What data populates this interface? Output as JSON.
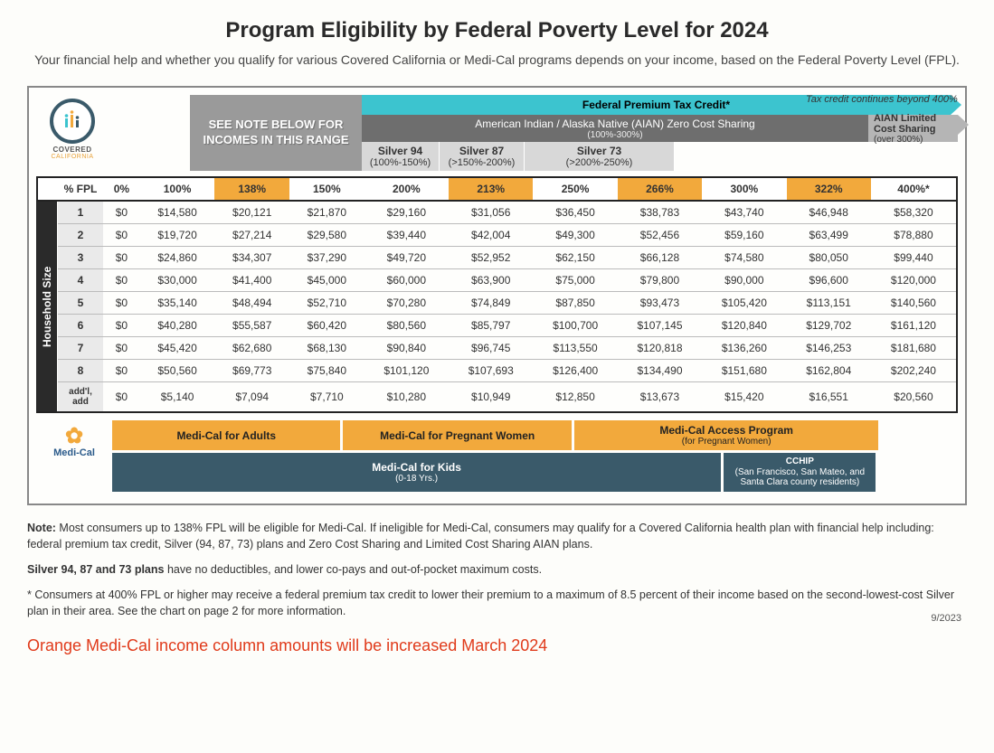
{
  "title": "Program Eligibility by Federal Poverty Level for 2024",
  "subtitle": "Your financial help and whether you qualify for various Covered California or Medi-Cal programs depends on your income, based on the Federal Poverty Level (FPL).",
  "logo": {
    "line1": "COVERED",
    "line2": "CALIFORNIA"
  },
  "bands": {
    "note_box": "SEE NOTE BELOW FOR INCOMES IN THIS RANGE",
    "federal_tax": "Federal Premium Tax Credit*",
    "tax_tail": "Tax credit continues beyond 400%",
    "aian": "American Indian / Alaska Native (AIAN) Zero Cost Sharing",
    "aian_sub": "(100%-300%)",
    "aian_tail": "AIAN Limited Cost Sharing",
    "aian_tail_sub": "(over 300%)",
    "silver94": "Silver 94",
    "silver94_sub": "(100%-150%)",
    "silver87": "Silver 87",
    "silver87_sub": "(>150%-200%)",
    "silver73": "Silver 73",
    "silver73_sub": "(>200%-250%)"
  },
  "table": {
    "side_label": "Household Size",
    "fpl_label": "% FPL",
    "cols": [
      "0%",
      "100%",
      "138%",
      "150%",
      "200%",
      "213%",
      "250%",
      "266%",
      "300%",
      "322%",
      "400%*"
    ],
    "highlight_cols": [
      2,
      5,
      7,
      9
    ],
    "row_labels": [
      "1",
      "2",
      "3",
      "4",
      "5",
      "6",
      "7",
      "8",
      "add'l, add"
    ],
    "rows": [
      [
        "$0",
        "$14,580",
        "$20,121",
        "$21,870",
        "$29,160",
        "$31,056",
        "$36,450",
        "$38,783",
        "$43,740",
        "$46,948",
        "$58,320"
      ],
      [
        "$0",
        "$19,720",
        "$27,214",
        "$29,580",
        "$39,440",
        "$42,004",
        "$49,300",
        "$52,456",
        "$59,160",
        "$63,499",
        "$78,880"
      ],
      [
        "$0",
        "$24,860",
        "$34,307",
        "$37,290",
        "$49,720",
        "$52,952",
        "$62,150",
        "$66,128",
        "$74,580",
        "$80,050",
        "$99,440"
      ],
      [
        "$0",
        "$30,000",
        "$41,400",
        "$45,000",
        "$60,000",
        "$63,900",
        "$75,000",
        "$79,800",
        "$90,000",
        "$96,600",
        "$120,000"
      ],
      [
        "$0",
        "$35,140",
        "$48,494",
        "$52,710",
        "$70,280",
        "$74,849",
        "$87,850",
        "$93,473",
        "$105,420",
        "$113,151",
        "$140,560"
      ],
      [
        "$0",
        "$40,280",
        "$55,587",
        "$60,420",
        "$80,560",
        "$85,797",
        "$100,700",
        "$107,145",
        "$120,840",
        "$129,702",
        "$161,120"
      ],
      [
        "$0",
        "$45,420",
        "$62,680",
        "$68,130",
        "$90,840",
        "$96,745",
        "$113,550",
        "$120,818",
        "$136,260",
        "$146,253",
        "$181,680"
      ],
      [
        "$0",
        "$50,560",
        "$69,773",
        "$75,840",
        "$101,120",
        "$107,693",
        "$126,400",
        "$134,490",
        "$151,680",
        "$162,804",
        "$202,240"
      ],
      [
        "$0",
        "$5,140",
        "$7,094",
        "$7,710",
        "$10,280",
        "$10,949",
        "$12,850",
        "$13,673",
        "$15,420",
        "$16,551",
        "$20,560"
      ]
    ]
  },
  "programs": {
    "logo": "Medi-Cal",
    "row1": [
      {
        "label": "Medi-Cal for Adults",
        "color": "orange",
        "flex": 27
      },
      {
        "label": "Medi-Cal for Pregnant Women",
        "color": "orange",
        "flex": 27
      },
      {
        "label": "Medi-Cal Access Program",
        "sub": "(for Pregnant Women)",
        "color": "orange",
        "flex": 36
      },
      {
        "label": "",
        "color": "none",
        "flex": 10
      }
    ],
    "row2": [
      {
        "label": "Medi-Cal for Kids",
        "sub": "(0-18 Yrs.)",
        "color": "navy",
        "flex": 72
      },
      {
        "label": "CCHIP (San Francisco, San Mateo, and Santa Clara county residents)",
        "sub": "",
        "color": "navy",
        "flex": 18,
        "small": true
      },
      {
        "label": "",
        "color": "none",
        "flex": 10
      }
    ]
  },
  "notes": {
    "n1_b": "Note:",
    "n1": " Most consumers up to 138% FPL will be eligible for Medi-Cal. If ineligible for Medi-Cal, consumers may qualify for a Covered California health plan with financial help including: federal premium tax credit, Silver (94, 87, 73) plans and Zero Cost Sharing and Limited Cost Sharing AIAN plans.",
    "n2_b": "Silver 94, 87 and 73 plans",
    "n2": " have no deductibles, and lower co-pays and out-of-pocket maximum costs.",
    "n3": "* Consumers at 400% FPL or higher may receive a federal premium tax credit to lower their premium to a maximum of 8.5 percent of their income based on the second-lowest-cost Silver plan in their area. See the chart on page 2 for more information.",
    "red": "Orange Medi-Cal income column amounts will be increased March 2024",
    "date": "9/2023"
  },
  "colors": {
    "teal": "#3cc4cf",
    "orange": "#f2a93c",
    "navy": "#3a5a6a",
    "darkgray": "#6e6e6e",
    "lightgray": "#d8d8d8"
  }
}
